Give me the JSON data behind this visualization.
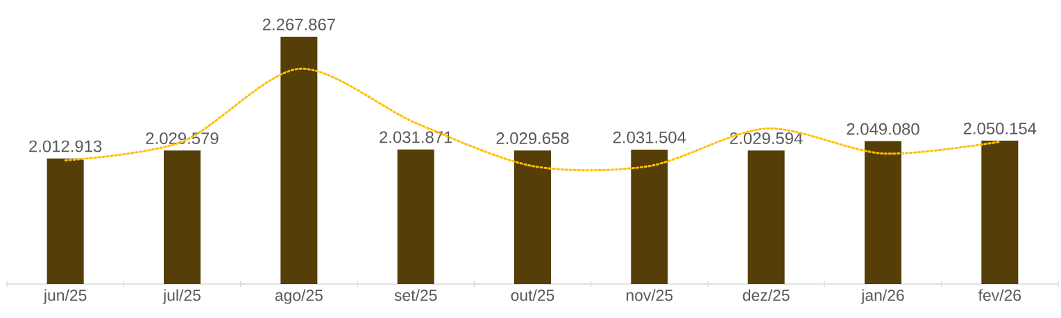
{
  "chart_data": {
    "type": "bar",
    "categories": [
      "jun/25",
      "jul/25",
      "ago/25",
      "set/25",
      "out/25",
      "nov/25",
      "dez/25",
      "jan/26",
      "fev/26"
    ],
    "ylim": [
      1750000,
      2267867
    ],
    "series": [
      {
        "color": "#553e08",
        "values": [
          2012913,
          2029579,
          2267867,
          2031871,
          2029658,
          2031504,
          2029594,
          2049080,
          2050154
        ],
        "value_labels": [
          "2.012.913",
          "2.029.579",
          "2.267.867",
          "2.031.871",
          "2.029.658",
          "2.031.504",
          "2.029.594",
          "2.049.080",
          "2.050.154"
        ]
      },
      {
        "type": "line",
        "color": "#ffc000",
        "line_style": "dotted",
        "marker": "none",
        "values": [
          2009000,
          2048000,
          2200600,
          2087200,
          1997100,
          1997100,
          2075600,
          2023300,
          2048000
        ]
      }
    ]
  }
}
